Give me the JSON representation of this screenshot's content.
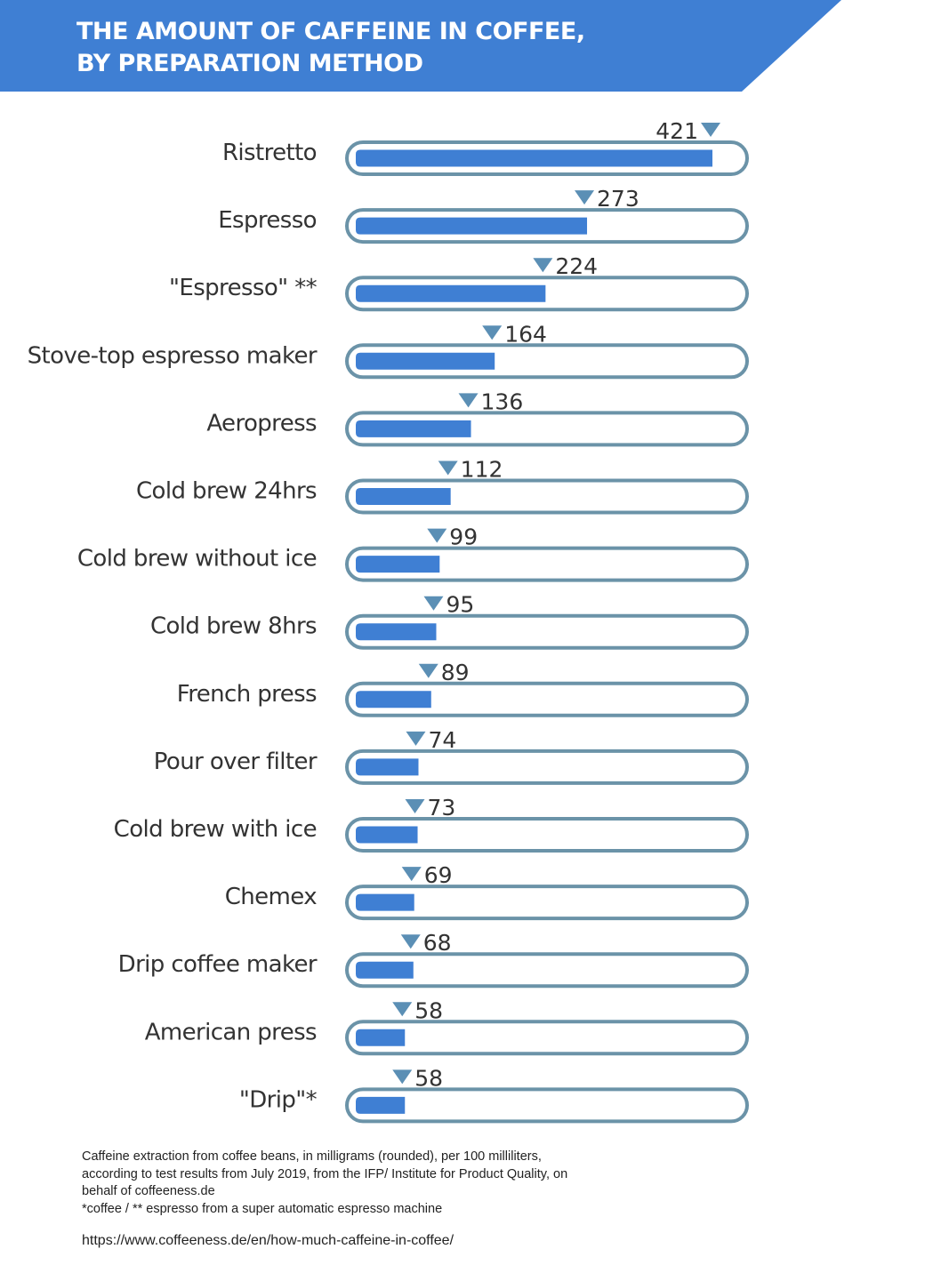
{
  "header": {
    "title_line1": "THE AMOUNT OF CAFFEINE IN COFFEE,",
    "title_line2": "BY PREPARATION METHOD",
    "banner_color": "#3f7fd3"
  },
  "chart_data": {
    "type": "bar",
    "orientation": "horizontal",
    "categories": [
      "Ristretto",
      "Espresso",
      "\"Espresso\" **",
      "Stove-top espresso maker",
      "Aeropress",
      "Cold brew 24hrs",
      "Cold brew without ice",
      "Cold brew 8hrs",
      "French press",
      "Pour over filter",
      "Cold brew with ice",
      "Chemex",
      "Drip coffee maker",
      "American press",
      "\"Drip\"*"
    ],
    "values": [
      421,
      273,
      224,
      164,
      136,
      112,
      99,
      95,
      89,
      74,
      73,
      69,
      68,
      58,
      58
    ],
    "bar_color": "#3f7fd3",
    "track_outline_color": "#6b93a8",
    "marker_color": "#5b8fb5",
    "grid": false
  },
  "footer": {
    "note_line1": "Caffeine extraction from coffee beans, in milligrams (rounded), per 100 milliliters,",
    "note_line2": "according to test results from July 2019, from the IFP/ Institute for Product Quality, on",
    "note_line3": "behalf of coffeeness.de",
    "note_line4": "*coffee / ** espresso from a super automatic espresso machine",
    "source_url": "https://www.coffeeness.de/en/how-much-caffeine-in-coffee/"
  }
}
